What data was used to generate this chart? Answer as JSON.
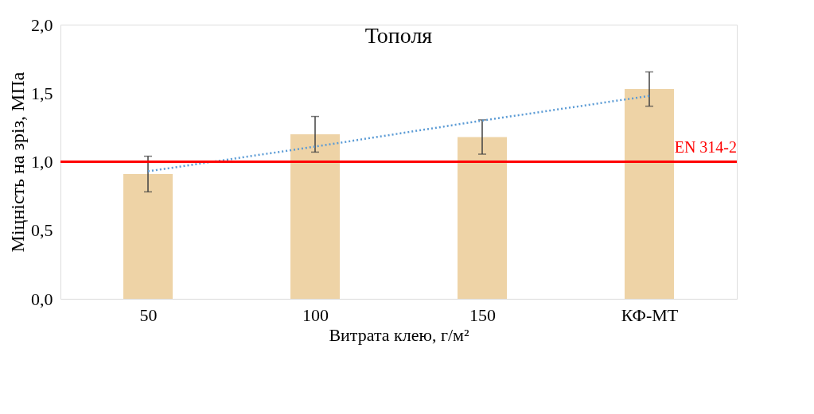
{
  "chart_data": {
    "type": "bar",
    "title": "Тополя",
    "xlabel": "Витрата клею, г/м²",
    "ylabel": "Міцність на зріз, МПа",
    "categories": [
      "50",
      "100",
      "150",
      "КФ-МТ"
    ],
    "series": [
      {
        "color": "#eed3a6",
        "values": [
          0.91,
          1.2,
          1.18,
          1.53
        ],
        "errors": [
          0.13,
          0.13,
          0.125,
          0.125
        ]
      },
      {
        "type": "line",
        "color": "#5b9bd5",
        "line_style": "dotted",
        "values": [
          0.93,
          1.11,
          1.3,
          1.48
        ]
      }
    ],
    "ref_lines": [
      {
        "axis": "y",
        "value": 1.0,
        "label": "EN 314-2",
        "color": "#ff0000"
      }
    ],
    "ylim": [
      0,
      2.0
    ],
    "yticks": [
      {
        "value": 0,
        "label": "0,0"
      },
      {
        "value": 0.5,
        "label": "0,5"
      },
      {
        "value": 1.0,
        "label": "1,0"
      },
      {
        "value": 1.5,
        "label": "1,5"
      },
      {
        "value": 2.0,
        "label": "2,0"
      }
    ],
    "grid": false
  }
}
